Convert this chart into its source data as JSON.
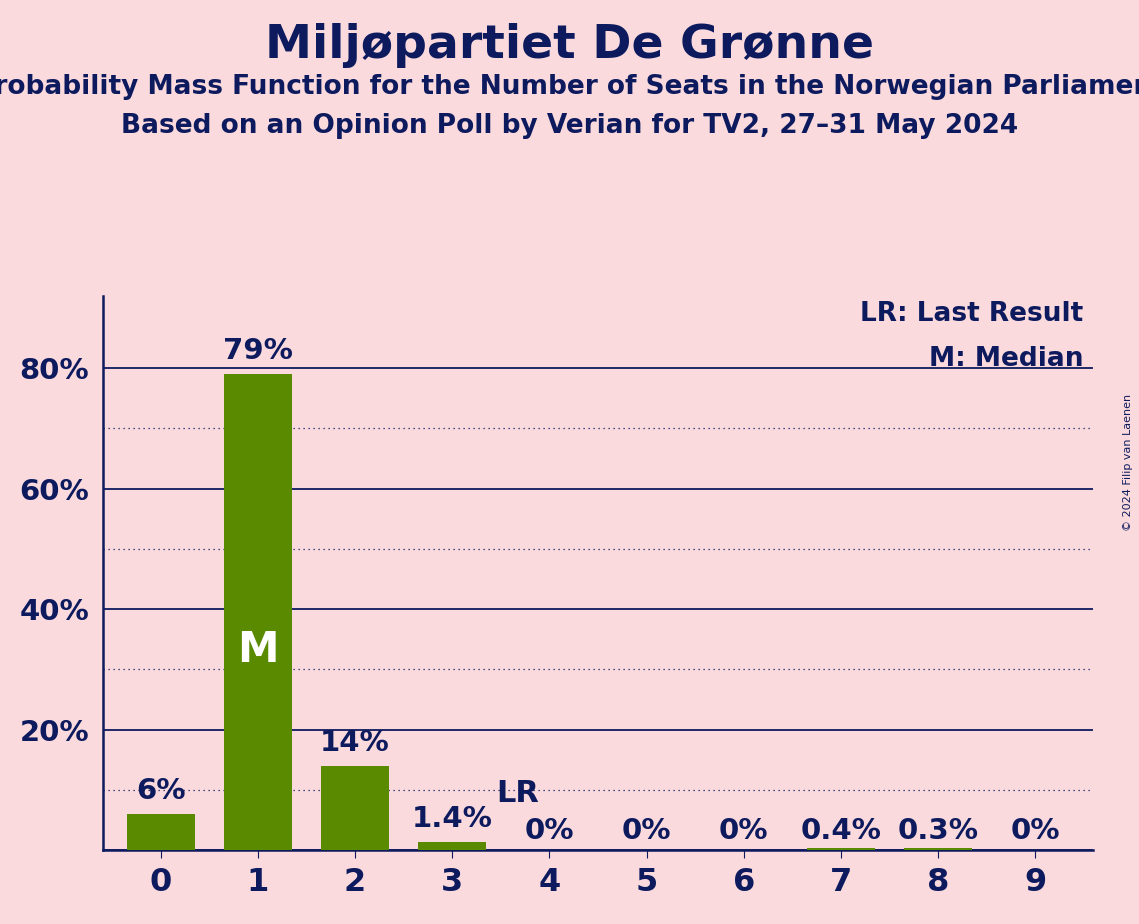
{
  "title": "Miljøpartiet De Grønne",
  "subtitle1": "Probability Mass Function for the Number of Seats in the Norwegian Parliament",
  "subtitle2": "Based on an Opinion Poll by Verian for TV2, 27–31 May 2024",
  "copyright": "© 2024 Filip van Laenen",
  "seats": [
    0,
    1,
    2,
    3,
    4,
    5,
    6,
    7,
    8,
    9
  ],
  "probabilities": [
    0.06,
    0.79,
    0.14,
    0.014,
    0.0,
    0.0,
    0.0,
    0.004,
    0.003,
    0.0
  ],
  "bar_labels": [
    "6%",
    "79%",
    "14%",
    "1.4%",
    "0%",
    "0%",
    "0%",
    "0.4%",
    "0.3%",
    "0%"
  ],
  "bar_color": "#5a8a00",
  "median_seat": 1,
  "last_result_seat": 3,
  "legend_lr": "LR: Last Result",
  "legend_m": "M: Median",
  "background_color": "#fadadd",
  "axis_color": "#0d1b5e",
  "bar_label_color": "#0d1b5e",
  "bar_label_color_on_bar": "#ffffff",
  "title_color": "#0d1b5e",
  "ylim": [
    0,
    0.92
  ],
  "solid_yticks": [
    0.0,
    0.2,
    0.4,
    0.6,
    0.8
  ],
  "ytick_labels": [
    "",
    "20%",
    "40%",
    "60%",
    "80%"
  ],
  "dotted_yticks": [
    0.1,
    0.3,
    0.5,
    0.7
  ]
}
